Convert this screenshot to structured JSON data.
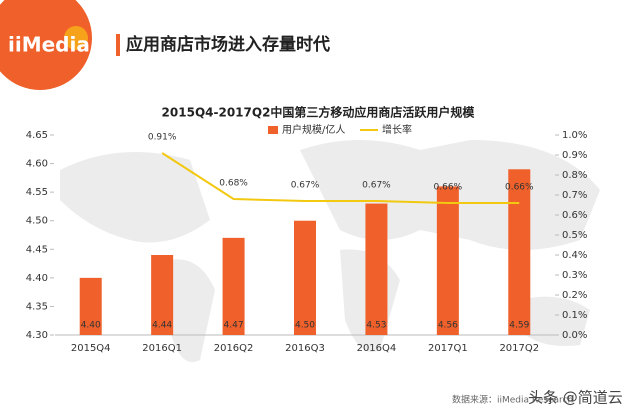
{
  "header": {
    "logo": "iiMedia",
    "title": "应用商店市场进入存量时代"
  },
  "chart_data": {
    "type": "bar_line",
    "title": "2015Q4-2017Q2中国第三方移动应用商店活跃用户规模",
    "categories": [
      "2015Q4",
      "2016Q1",
      "2016Q2",
      "2016Q3",
      "2016Q4",
      "2017Q1",
      "2017Q2"
    ],
    "series": [
      {
        "name": "用户规模/亿人",
        "type": "bar",
        "color": "#f0602a",
        "values": [
          4.4,
          4.44,
          4.47,
          4.5,
          4.53,
          4.56,
          4.59
        ],
        "value_labels": [
          "4.40",
          "4.44",
          "4.47",
          "4.50",
          "4.53",
          "4.56",
          "4.59"
        ]
      },
      {
        "name": "增长率",
        "type": "line",
        "color": "#f2c811",
        "axis": "y2",
        "values": [
          null,
          0.91,
          0.68,
          0.67,
          0.67,
          0.66,
          0.66
        ],
        "value_labels": [
          null,
          "0.91%",
          "0.68%",
          "0.67%",
          "0.67%",
          "0.66%",
          "0.66%"
        ]
      }
    ],
    "ylim": [
      4.3,
      4.65
    ],
    "yticks": [
      {
        "value": 4.3,
        "label": "4.30"
      },
      4.35,
      {
        "value": 4.4,
        "label": "4.40"
      },
      4.45,
      {
        "value": 4.5,
        "label": "4.50"
      },
      4.55,
      {
        "value": 4.6,
        "label": "4.60"
      },
      4.65
    ],
    "y2lim": [
      0,
      1.0
    ],
    "y2ticks": [
      {
        "value": 0,
        "label": "0.0%"
      },
      {
        "value": 0.1,
        "label": "0.1%"
      },
      {
        "value": 0.2,
        "label": "0.2%"
      },
      {
        "value": 0.3,
        "label": "0.3%"
      },
      {
        "value": 0.4,
        "label": "0.4%"
      },
      {
        "value": 0.5,
        "label": "0.5%"
      },
      {
        "value": 0.6,
        "label": "0.6%"
      },
      {
        "value": 0.7,
        "label": "0.7%"
      },
      {
        "value": 0.8,
        "label": "0.8%"
      },
      {
        "value": 0.9,
        "label": "0.9%"
      },
      {
        "value": 1.0,
        "label": "1.0%"
      }
    ],
    "legend": "top"
  },
  "footer": {
    "source": "数据来源：iiMedia Research",
    "watermark": "头条 @简道云"
  }
}
